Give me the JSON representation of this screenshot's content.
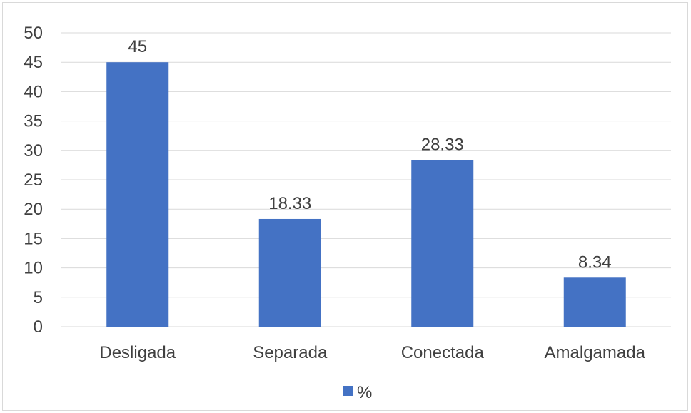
{
  "chart_data": {
    "type": "bar",
    "categories": [
      "Desligada",
      "Separada",
      "Conectada",
      "Amalgamada"
    ],
    "series": [
      {
        "name": "%",
        "values": [
          45,
          18.33,
          28.33,
          8.34
        ],
        "data_labels": [
          "45",
          "18.33",
          "28.33",
          "8.34"
        ],
        "color": "#4472c4"
      }
    ],
    "ylim": [
      0,
      50
    ],
    "yticks": [
      0,
      5,
      10,
      15,
      20,
      25,
      30,
      35,
      40,
      45,
      50
    ],
    "grid": true,
    "legend": "bottom",
    "colors": {
      "bar": "#4472c4",
      "grid": "#d9d9d9",
      "text": "#404040"
    }
  }
}
